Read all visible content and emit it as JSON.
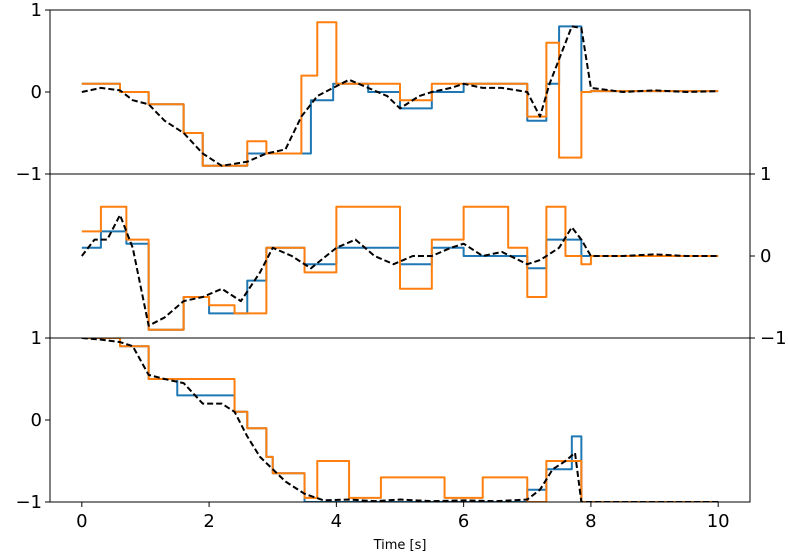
{
  "chart_data": {
    "type": "line",
    "xlabel": "Time [s]",
    "xlim": [
      -0.5,
      10.5
    ],
    "xticks": [
      0,
      2,
      4,
      6,
      8,
      10
    ],
    "xtick_labels": [
      "0",
      "2",
      "4",
      "6",
      "8",
      "10"
    ],
    "colors": {
      "blue": "#1f77b4",
      "orange": "#ff7f0e",
      "black": "#000000"
    },
    "panels": [
      {
        "ylim": [
          -1,
          1
        ],
        "yaxis_side": "left",
        "yticks": [
          -1,
          0,
          1
        ],
        "ytick_labels": [
          "−1",
          "0",
          "1"
        ],
        "series": [
          {
            "color": "#1f77b4",
            "style": "step",
            "x": [
              0,
              0.6,
              0.6,
              1.05,
              1.05,
              1.6,
              1.6,
              1.9,
              1.9,
              2.6,
              2.6,
              3.6,
              3.6,
              3.95,
              3.95,
              4.5,
              4.5,
              5.0,
              5.0,
              5.5,
              5.5,
              6.0,
              6.0,
              7.0,
              7.0,
              7.3,
              7.3,
              7.5,
              7.5,
              7.85,
              7.85,
              8.0,
              8.0,
              10.0
            ],
            "y": [
              0.1,
              0.1,
              0,
              0,
              -0.15,
              -0.15,
              -0.5,
              -0.5,
              -0.9,
              -0.9,
              -0.75,
              -0.75,
              -0.1,
              -0.1,
              0.1,
              0.1,
              0,
              0,
              -0.2,
              -0.2,
              0,
              0,
              0.1,
              0.1,
              -0.35,
              -0.35,
              0.1,
              0.1,
              0.8,
              0.8,
              0,
              0,
              0.01,
              0.01
            ]
          },
          {
            "color": "#ff7f0e",
            "style": "step",
            "x": [
              0,
              0.6,
              0.6,
              1.05,
              1.05,
              1.6,
              1.6,
              1.9,
              1.9,
              2.6,
              2.6,
              2.9,
              2.9,
              3.45,
              3.45,
              3.7,
              3.7,
              4.0,
              4.0,
              4.5,
              4.5,
              5.0,
              5.0,
              5.5,
              5.5,
              6.0,
              6.0,
              7.0,
              7.0,
              7.3,
              7.3,
              7.5,
              7.5,
              7.85,
              7.85,
              8.0,
              8.0,
              10.0
            ],
            "y": [
              0.1,
              0.1,
              0,
              0,
              -0.15,
              -0.15,
              -0.5,
              -0.5,
              -0.9,
              -0.9,
              -0.6,
              -0.6,
              -0.75,
              -0.75,
              0.2,
              0.2,
              0.85,
              0.85,
              0.1,
              0.1,
              0.1,
              0.1,
              -0.1,
              -0.1,
              0.1,
              0.1,
              0.1,
              0.1,
              -0.3,
              -0.3,
              0.6,
              0.6,
              -0.8,
              -0.8,
              0,
              0,
              0.01,
              0.01
            ]
          },
          {
            "color": "#000000",
            "style": "dashed",
            "x": [
              0,
              0.3,
              0.6,
              0.8,
              1.05,
              1.3,
              1.6,
              1.9,
              2.2,
              2.6,
              2.9,
              3.2,
              3.45,
              3.7,
              3.95,
              4.2,
              4.5,
              4.8,
              5.0,
              5.3,
              5.5,
              5.8,
              6.0,
              6.3,
              6.6,
              7.0,
              7.2,
              7.35,
              7.5,
              7.7,
              7.85,
              8.0,
              8.5,
              9.0,
              9.5,
              10.0
            ],
            "y": [
              0,
              0.05,
              0.02,
              -0.1,
              -0.15,
              -0.35,
              -0.5,
              -0.75,
              -0.9,
              -0.85,
              -0.75,
              -0.7,
              -0.3,
              -0.05,
              0.05,
              0.15,
              0.05,
              -0.05,
              -0.2,
              -0.05,
              0,
              0.05,
              0.1,
              0.05,
              0.05,
              0,
              -0.3,
              0.1,
              0.4,
              0.8,
              0.78,
              0.05,
              0.0,
              0.02,
              0.0,
              0.01
            ]
          }
        ]
      },
      {
        "ylim": [
          -1,
          1
        ],
        "yaxis_side": "right",
        "yticks": [
          -1,
          0,
          1
        ],
        "ytick_labels": [
          "−1",
          "0",
          "1"
        ],
        "series": [
          {
            "color": "#1f77b4",
            "style": "step",
            "x": [
              0,
              0.3,
              0.3,
              0.7,
              0.7,
              1.05,
              1.05,
              1.6,
              1.6,
              2.0,
              2.0,
              2.6,
              2.6,
              2.9,
              2.9,
              3.5,
              3.5,
              4.0,
              4.0,
              5.0,
              5.0,
              5.5,
              5.5,
              6.0,
              6.0,
              7.0,
              7.0,
              7.3,
              7.3,
              7.85,
              7.85,
              8.0,
              8.0,
              10.0
            ],
            "y": [
              0.1,
              0.1,
              0.3,
              0.3,
              0.15,
              0.15,
              -0.9,
              -0.9,
              -0.5,
              -0.5,
              -0.7,
              -0.7,
              -0.3,
              -0.3,
              0.1,
              0.1,
              -0.1,
              -0.1,
              0.1,
              0.1,
              -0.1,
              -0.1,
              0.1,
              0.1,
              0,
              0,
              -0.15,
              -0.15,
              0.2,
              0.2,
              0,
              0,
              0,
              0
            ]
          },
          {
            "color": "#ff7f0e",
            "style": "step",
            "x": [
              0,
              0.3,
              0.3,
              0.7,
              0.7,
              1.05,
              1.05,
              1.6,
              1.6,
              2.0,
              2.0,
              2.4,
              2.4,
              2.9,
              2.9,
              3.5,
              3.5,
              4.0,
              4.0,
              4.5,
              4.5,
              5.0,
              5.0,
              5.5,
              5.5,
              6.0,
              6.0,
              6.7,
              6.7,
              7.0,
              7.0,
              7.3,
              7.3,
              7.6,
              7.6,
              7.85,
              7.85,
              8.0,
              8.0,
              10.0
            ],
            "y": [
              0.3,
              0.3,
              0.6,
              0.6,
              0.2,
              0.2,
              -0.9,
              -0.9,
              -0.5,
              -0.5,
              -0.6,
              -0.6,
              -0.7,
              -0.7,
              0.1,
              0.1,
              -0.2,
              -0.2,
              0.6,
              0.6,
              0.6,
              0.6,
              -0.4,
              -0.4,
              0.2,
              0.2,
              0.6,
              0.6,
              0.1,
              0.1,
              -0.5,
              -0.5,
              0.6,
              0.6,
              0,
              0,
              -0.1,
              -0.1,
              0,
              0
            ]
          },
          {
            "color": "#000000",
            "style": "dashed",
            "x": [
              0,
              0.2,
              0.4,
              0.6,
              0.8,
              1.05,
              1.3,
              1.6,
              1.9,
              2.2,
              2.5,
              2.8,
              3.0,
              3.3,
              3.6,
              4.0,
              4.3,
              4.6,
              4.9,
              5.2,
              5.5,
              5.8,
              6.0,
              6.3,
              6.6,
              7.0,
              7.2,
              7.5,
              7.7,
              7.85,
              8.0,
              8.5,
              9.0,
              9.5,
              10.0
            ],
            "y": [
              0.0,
              0.2,
              0.2,
              0.5,
              0.1,
              -0.85,
              -0.75,
              -0.55,
              -0.5,
              -0.4,
              -0.55,
              -0.2,
              0.1,
              0.0,
              -0.15,
              0.1,
              0.2,
              0.0,
              -0.1,
              0.0,
              0.0,
              0.1,
              0.15,
              0.0,
              0.05,
              -0.1,
              -0.05,
              0.1,
              0.35,
              0.2,
              0.0,
              0.0,
              0.02,
              0.0,
              0.0
            ]
          }
        ]
      },
      {
        "ylim": [
          -1,
          1
        ],
        "yaxis_side": "left",
        "yticks": [
          -1,
          0,
          1
        ],
        "ytick_labels": [
          "−1",
          "0",
          "1"
        ],
        "series": [
          {
            "color": "#1f77b4",
            "style": "step",
            "x": [
              0,
              0.6,
              0.6,
              1.05,
              1.05,
              1.5,
              1.5,
              2.4,
              2.4,
              2.6,
              2.6,
              2.9,
              2.9,
              3.0,
              3.0,
              3.5,
              3.5,
              7.0,
              7.0,
              7.3,
              7.3,
              7.7,
              7.7,
              7.85,
              7.85,
              10.0
            ],
            "y": [
              1.0,
              1.0,
              0.9,
              0.9,
              0.5,
              0.5,
              0.3,
              0.3,
              0.1,
              0.1,
              -0.1,
              -0.1,
              -0.45,
              -0.45,
              -0.65,
              -0.65,
              -1.0,
              -1.0,
              -0.85,
              -0.85,
              -0.6,
              -0.6,
              -0.2,
              -0.2,
              -1.0,
              -1.0
            ]
          },
          {
            "color": "#ff7f0e",
            "style": "step",
            "x": [
              0,
              0.6,
              0.6,
              1.05,
              1.05,
              1.5,
              1.5,
              2.4,
              2.4,
              2.6,
              2.6,
              2.9,
              2.9,
              3.0,
              3.0,
              3.5,
              3.5,
              3.7,
              3.7,
              4.2,
              4.2,
              4.7,
              4.7,
              5.7,
              5.7,
              6.3,
              6.3,
              7.0,
              7.0,
              7.3,
              7.3,
              7.85,
              7.85,
              10.0
            ],
            "y": [
              1.0,
              1.0,
              0.9,
              0.9,
              0.5,
              0.5,
              0.5,
              0.5,
              0.1,
              0.1,
              -0.1,
              -0.1,
              -0.45,
              -0.45,
              -0.65,
              -0.65,
              -0.95,
              -0.95,
              -0.5,
              -0.5,
              -0.95,
              -0.95,
              -0.7,
              -0.7,
              -0.95,
              -0.95,
              -0.7,
              -0.7,
              -1.0,
              -1.0,
              -0.5,
              -0.5,
              -1.0,
              -1.0
            ]
          },
          {
            "color": "#000000",
            "style": "dashed",
            "x": [
              0,
              0.3,
              0.6,
              0.8,
              1.05,
              1.3,
              1.6,
              1.9,
              2.2,
              2.4,
              2.6,
              2.8,
              3.0,
              3.2,
              3.5,
              3.8,
              4.2,
              4.6,
              5.0,
              5.5,
              6.0,
              6.5,
              7.0,
              7.2,
              7.4,
              7.6,
              7.75,
              7.85,
              8.0,
              8.5,
              9.0,
              10.0
            ],
            "y": [
              1.0,
              0.98,
              0.95,
              0.9,
              0.55,
              0.5,
              0.45,
              0.2,
              0.2,
              0.1,
              -0.2,
              -0.45,
              -0.6,
              -0.75,
              -0.9,
              -0.98,
              -0.97,
              -0.99,
              -0.97,
              -0.99,
              -0.98,
              -0.99,
              -0.97,
              -0.85,
              -0.6,
              -0.5,
              -0.4,
              -1.0,
              -1.0,
              -1.0,
              -1.0,
              -1.0
            ]
          }
        ]
      }
    ]
  }
}
